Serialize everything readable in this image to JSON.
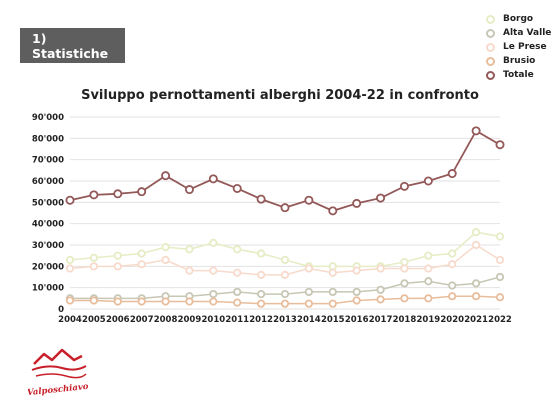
{
  "header": {
    "label": "1) Statistiche"
  },
  "chart_data": {
    "type": "line",
    "title": "Sviluppo pernottamenti alberghi 2004-22 in confronto",
    "xlabel": "",
    "ylabel": "",
    "ylim": [
      0,
      90000
    ],
    "yticks": [
      0,
      10000,
      20000,
      30000,
      40000,
      50000,
      60000,
      70000,
      80000,
      90000
    ],
    "ytick_labels": [
      "0",
      "10'000",
      "20'000",
      "30'000",
      "40'000",
      "50'000",
      "60'000",
      "70'000",
      "80'000",
      "90'000"
    ],
    "grid": true,
    "legend_position": "top-right",
    "x": [
      "2004",
      "2005",
      "2006",
      "2007",
      "2008",
      "2009",
      "2010",
      "2011",
      "2012",
      "2013",
      "2014",
      "2015",
      "2016",
      "2017",
      "2018",
      "2019",
      "2020",
      "2021",
      "2022"
    ],
    "series": [
      {
        "name": "Borgo",
        "color": "#e6ecc4",
        "values": [
          23000,
          24000,
          25000,
          26000,
          29000,
          28000,
          31000,
          28000,
          26000,
          23000,
          20000,
          20000,
          20000,
          20000,
          22000,
          25000,
          26000,
          36000,
          34000
        ]
      },
      {
        "name": "Alta Valle",
        "color": "#c8c6b4",
        "values": [
          5000,
          5000,
          5000,
          5000,
          6000,
          6000,
          7000,
          8000,
          7000,
          7000,
          8000,
          8000,
          8000,
          9000,
          12000,
          13000,
          11000,
          12000,
          15000
        ]
      },
      {
        "name": "Le Prese",
        "color": "#f7dacb",
        "values": [
          19000,
          20000,
          20000,
          21000,
          23000,
          18000,
          18000,
          17000,
          16000,
          16000,
          19000,
          17000,
          18000,
          19000,
          19000,
          19000,
          21000,
          30000,
          23000
        ]
      },
      {
        "name": "Brusio",
        "color": "#e8bd9c",
        "values": [
          4000,
          4000,
          3500,
          3500,
          3500,
          3500,
          3500,
          3000,
          2500,
          2500,
          2500,
          2500,
          4000,
          4500,
          5000,
          5000,
          6000,
          6000,
          5500
        ]
      },
      {
        "name": "Totale",
        "color": "#935858",
        "values": [
          51000,
          53500,
          54000,
          55000,
          62500,
          56000,
          61000,
          56500,
          51500,
          47500,
          51000,
          46000,
          49500,
          52000,
          57500,
          60000,
          63500,
          83500,
          77000
        ]
      }
    ]
  },
  "logo": {
    "text": "Valposchiavo"
  }
}
